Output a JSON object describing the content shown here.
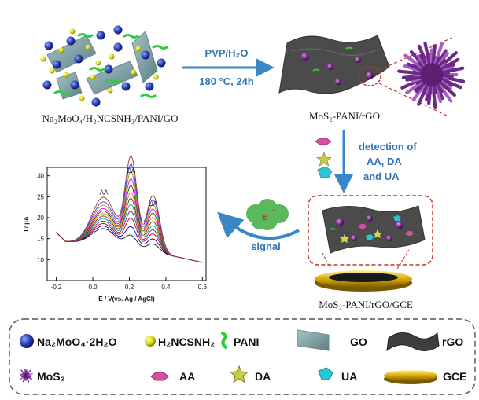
{
  "precursor_label": "Na₂MoO₄/H₂NCSNH₂/PANI/GO",
  "arrow_top_line1": "PVP/H₂O",
  "arrow_top_line2": "180 °C, 24h",
  "product_label": "MoS₂-PANI/rGO",
  "detection_lines": [
    "detection of",
    "AA, DA",
    "and UA"
  ],
  "electrode_label": "MoS₂-PANI/rGO/GCE",
  "signal_label": "signal",
  "electron_label": "e",
  "electron_sup": "-",
  "colors": {
    "accent": "#2e75b6",
    "dashed_red": "#c0392b",
    "sheet": "#555555"
  },
  "chart_data": {
    "type": "line",
    "xlabel": "E / V(vs. Ag / AgCl)",
    "ylabel": "I / µA",
    "xlim": [
      -0.25,
      0.62
    ],
    "ylim": [
      5,
      32
    ],
    "x_ticks": [
      "-0.2",
      "0.0",
      "0.2",
      "0.4",
      "0.6"
    ],
    "y_ticks": [
      "10",
      "15",
      "20",
      "25",
      "30"
    ],
    "peak_labels": [
      "AA",
      "DA",
      "UA"
    ],
    "peaks": {
      "AA_x": 0.06,
      "DA_x": 0.21,
      "UA_x": 0.33
    },
    "series_count": 12,
    "series_colors": [
      "#1a1a1a",
      "#0000cc",
      "#cc0000",
      "#7a1f7a",
      "#009999",
      "#663300",
      "#ff6600",
      "#006600",
      "#ff00ff",
      "#999900",
      "#3333ff",
      "#993333"
    ],
    "baseline_start": 14.5,
    "baseline_end": 8.5,
    "AA_heights": [
      4,
      4.6,
      5.2,
      5.8,
      6.4,
      7.0,
      7.6,
      8.2,
      8.8,
      9.6,
      10.4,
      11.5
    ],
    "DA_heights": [
      3,
      5,
      7,
      8.6,
      10.2,
      11.6,
      13.0,
      14.6,
      16.2,
      17.8,
      19.6,
      21.5
    ],
    "UA_heights": [
      2,
      3.2,
      4.4,
      5.4,
      6.4,
      7.4,
      8.4,
      9.4,
      10.4,
      11.4,
      12.6,
      13.6
    ]
  },
  "legend": [
    {
      "label": "Na₂MoO₄·2H₂O",
      "icon": "blue-sphere"
    },
    {
      "label": "H₂NCSNH₂",
      "icon": "yellow-sphere"
    },
    {
      "label": "PANI",
      "icon": "green-squiggle"
    },
    {
      "label": "GO",
      "icon": "go-sheet"
    },
    {
      "label": "rGO",
      "icon": "rgo-sheet"
    },
    {
      "label": "MoS₂",
      "icon": "mos2-flower"
    },
    {
      "label": "AA",
      "icon": "pink-hexagon"
    },
    {
      "label": "DA",
      "icon": "star"
    },
    {
      "label": "UA",
      "icon": "cyan-crystal"
    },
    {
      "label": "GCE",
      "icon": "gold-disc"
    }
  ]
}
